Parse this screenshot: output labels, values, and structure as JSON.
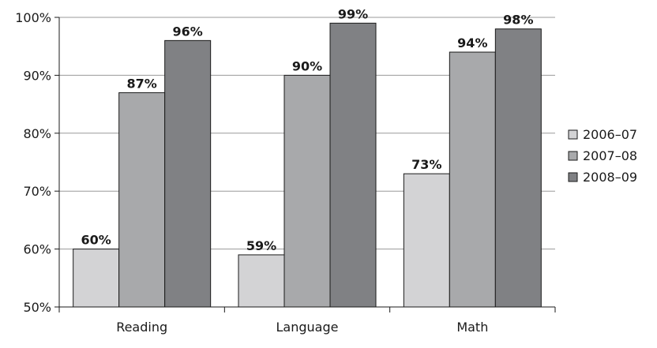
{
  "chart_data": {
    "type": "bar",
    "categories": [
      "Reading",
      "Language",
      "Math"
    ],
    "series": [
      {
        "name": "2006–07",
        "values": [
          60,
          59,
          73
        ],
        "labels": [
          "60%",
          "59%",
          "73%"
        ],
        "color": "#d3d3d5"
      },
      {
        "name": "2007–08",
        "values": [
          87,
          90,
          94
        ],
        "labels": [
          "87%",
          "90%",
          "94%"
        ],
        "color": "#a8a9ab"
      },
      {
        "name": "2008–09",
        "values": [
          96,
          99,
          98
        ],
        "labels": [
          "96%",
          "99%",
          "98%"
        ],
        "color": "#808184"
      }
    ],
    "ylim": [
      50,
      100
    ],
    "yticks": [
      50,
      60,
      70,
      80,
      90,
      100
    ],
    "ytick_labels": [
      "50%",
      "60%",
      "70%",
      "80%",
      "90%",
      "100%"
    ],
    "grid": true,
    "legend_position": "right",
    "title": "",
    "xlabel": "",
    "ylabel": ""
  }
}
